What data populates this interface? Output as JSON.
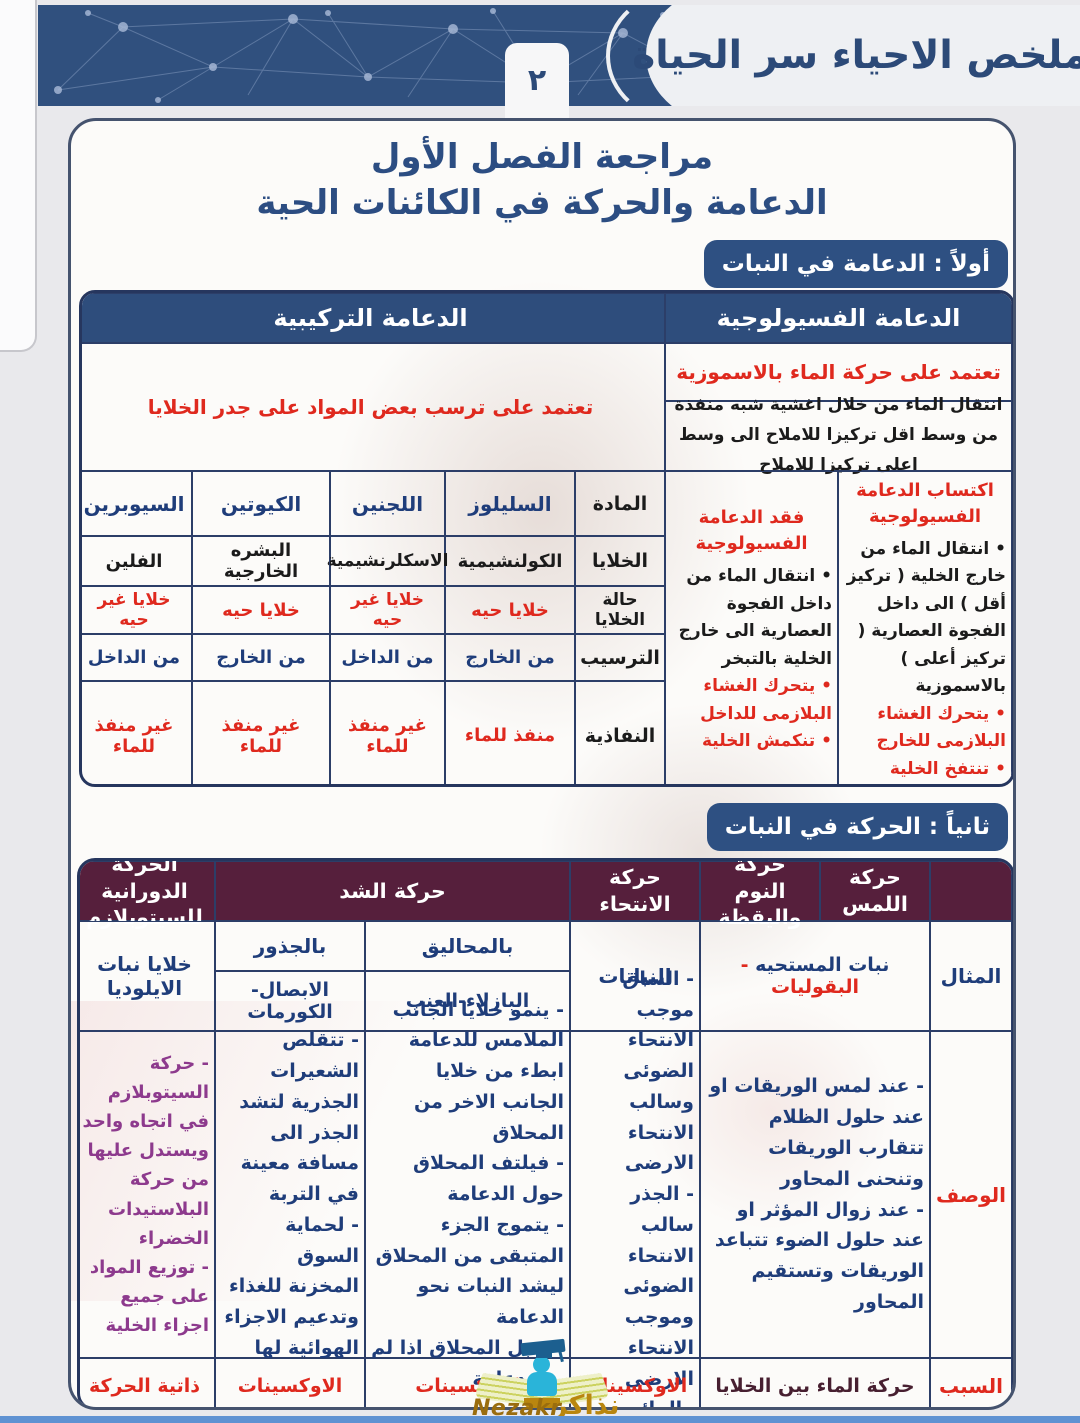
{
  "page": {
    "banner_title": "ملخص الاحياء سر الحياة",
    "page_number": "٢",
    "title_line1": "مراجعة الفصل الأول",
    "title_line2": "الدعامة والحركة في الكائنات الحية",
    "section1_badge": "أولاً : الدعامة في النبات",
    "section2_badge": "ثانياً : الحركة في النبات"
  },
  "colors": {
    "banner_blue": "#30507e",
    "table1_header_blue": "#2e4d7c",
    "table2_header_maroon": "#561f3c",
    "red_text": "#df291e",
    "navy_text": "#1f3d7a",
    "purple_text": "#8d3a8d",
    "watermark_gold": "#b9860f"
  },
  "support_table": {
    "header_physiological": "الدعامة الفسيولوجية",
    "header_structural": "الدعامة التركيبية",
    "physiological_basis": "تعتمد على حركة الماء بالاسموزية",
    "physiological_definition": "انتقال الماء من خلال اغشية شبه منفذة من وسط اقل تركيزا للاملاح الى وسط اعلى تركيزا للاملاح",
    "structural_basis": "تعتمد على ترسب بعض المواد على جدر الخلايا",
    "gain": {
      "header": "اكتساب الدعامة الفسيولوجية",
      "points_black": [
        "انتقال الماء من خارج الخلية ( تركيز أقل ) الى داخل الفجوة العصارية ( تركيز أعلى ) بالاسموزية"
      ],
      "points_red": [
        "يتحرك الغشاء البلازمى للخارج",
        "تنتفخ الخلية"
      ]
    },
    "loss": {
      "header": "فقد الدعامة الفسيولوجية",
      "points_black": [
        "انتقال الماء من داخل الفجوة العصارية الى خارج الخلية بالتبخر"
      ],
      "points_red": [
        "يتحرك الغشاء البلازمى للداخل",
        "تنكمش الخلية"
      ]
    },
    "row_labels": [
      "المادة",
      "الخلايا",
      "حالة الخلايا",
      "الترسيب",
      "النفاذية"
    ],
    "materials": [
      {
        "name": "السليلوز",
        "cells": "الكولنشيمية",
        "state": "خلايا حيه",
        "deposit": "من الخارج",
        "permeability": "منفذ للماء"
      },
      {
        "name": "اللجنين",
        "cells": "الاسكلرنشيمية",
        "state": "خلايا غير حيه",
        "deposit": "من الداخل",
        "permeability": "غير منفذ للماء"
      },
      {
        "name": "الكيوتين",
        "cells": "البشره الخارجية",
        "state": "خلايا حيه",
        "deposit": "من الخارج",
        "permeability": "غير منفذ للماء"
      },
      {
        "name": "السيوبرين",
        "cells": "الفلين",
        "state": "خلايا غير حيه",
        "deposit": "من الداخل",
        "permeability": "غير منفذ للماء"
      }
    ]
  },
  "movement_table": {
    "headers": {
      "touch": "حركة اللمس",
      "sleep_wake": "حركة النوم واليقظة",
      "tropism": "حركة الانتحاء",
      "contraction": "حركة الشد",
      "rotation": "الحركة الدورانية للسيتوبلازم"
    },
    "row_labels": {
      "example": "المثال",
      "description": "الوصف",
      "cause": "السبب"
    },
    "example": {
      "touch_sleep_black": "نبات المستحيه",
      "touch_sleep_red": "- البقوليات",
      "tropism": "النباتات",
      "tendrils_title": "بالمحاليق",
      "tendrils_plants": "البازلاء-العنب",
      "roots_title": "بالجذور",
      "roots_plants": "الابصال- الكورمات",
      "rotation": "خلايا نبات الايلوديا"
    },
    "description": {
      "touch_sleep": [
        "عند لمس الوريقات او عند حلول الظلام تتقارب الوريقات وتنحنى المحاور",
        "عند زوال المؤثر او عند حلول الضوء تتباعد الوريقات وتستقيم المحاور"
      ],
      "tropism": [
        "الساق موجب الانتحاء الضوئى وسالب الانتحاء الارضى",
        "الجذر سالب الانتحاء الضوئى وموجب الانتحاء الارضى والمائي"
      ],
      "tendrils": [
        "ينمو خلايا الجانب الملامس للدعامة ابطء من خلايا الجانب الاخر من المحلاق",
        "فيلتف المحلاق حول الدعامة",
        "يتموج الجزء المتبقى من المحلاق ليشد النبات نحو الدعامة",
        "يذبل المحلاق اذا لم يجد دعامة"
      ],
      "roots": [
        "تتقلص الشعيرات الجذرية لتشد الجذر الى مسافة معينة في التربة",
        "لحماية السوق المخزنة للغذاء وتدعيم الاجزاء الهوائية لها"
      ],
      "rotation": [
        "حركة السيتوبلازم في اتجاه واحد ويستدل عليها من حركة البلاستيدات الخضراء",
        "توزيع المواد على جميع اجزاء الخلية"
      ]
    },
    "cause": {
      "touch_sleep": "حركة الماء بين الخلايا",
      "tropism": "الاوكسينات",
      "tendrils": "الاوكسينات",
      "roots": "الاوكسينات",
      "rotation": "ذاتية الحركة"
    }
  },
  "watermark": {
    "arabic": "نذاكر",
    "latin": "Nezakr"
  }
}
